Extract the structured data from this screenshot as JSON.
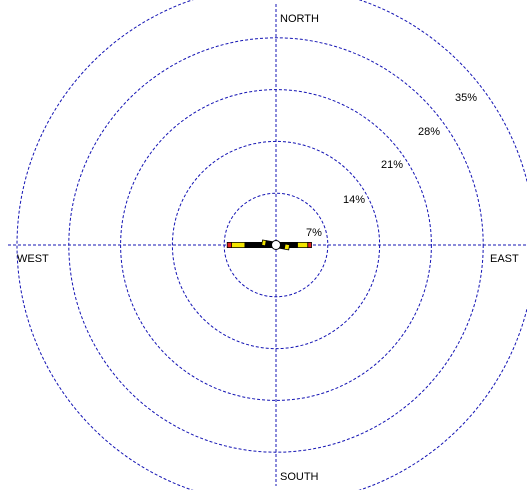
{
  "chart_data": {
    "type": "wind-rose",
    "direction_labels": {
      "north": "NORTH",
      "south": "SOUTH",
      "east": "EAST",
      "west": "WEST"
    },
    "rings": [
      {
        "value": 7,
        "label": "7%"
      },
      {
        "value": 14,
        "label": "14%"
      },
      {
        "value": 21,
        "label": "21%"
      },
      {
        "value": 28,
        "label": "28%"
      },
      {
        "value": 35,
        "label": "35%"
      }
    ],
    "max_percent": 35,
    "grid": true,
    "speed_classes": [
      {
        "color": "#000000"
      },
      {
        "color": "#f2e500"
      },
      {
        "color": "#e02020"
      }
    ],
    "directions": [
      {
        "bearing_deg": 90,
        "segments": [
          2.9,
          1.4,
          0.5
        ]
      },
      {
        "bearing_deg": 270,
        "segments": [
          4.2,
          1.8,
          0.6
        ]
      },
      {
        "bearing_deg": 100,
        "segments": [
          1.2,
          0.6,
          0
        ]
      },
      {
        "bearing_deg": 280,
        "segments": [
          1.4,
          0.5,
          0
        ]
      }
    ],
    "calm_circle": true
  }
}
